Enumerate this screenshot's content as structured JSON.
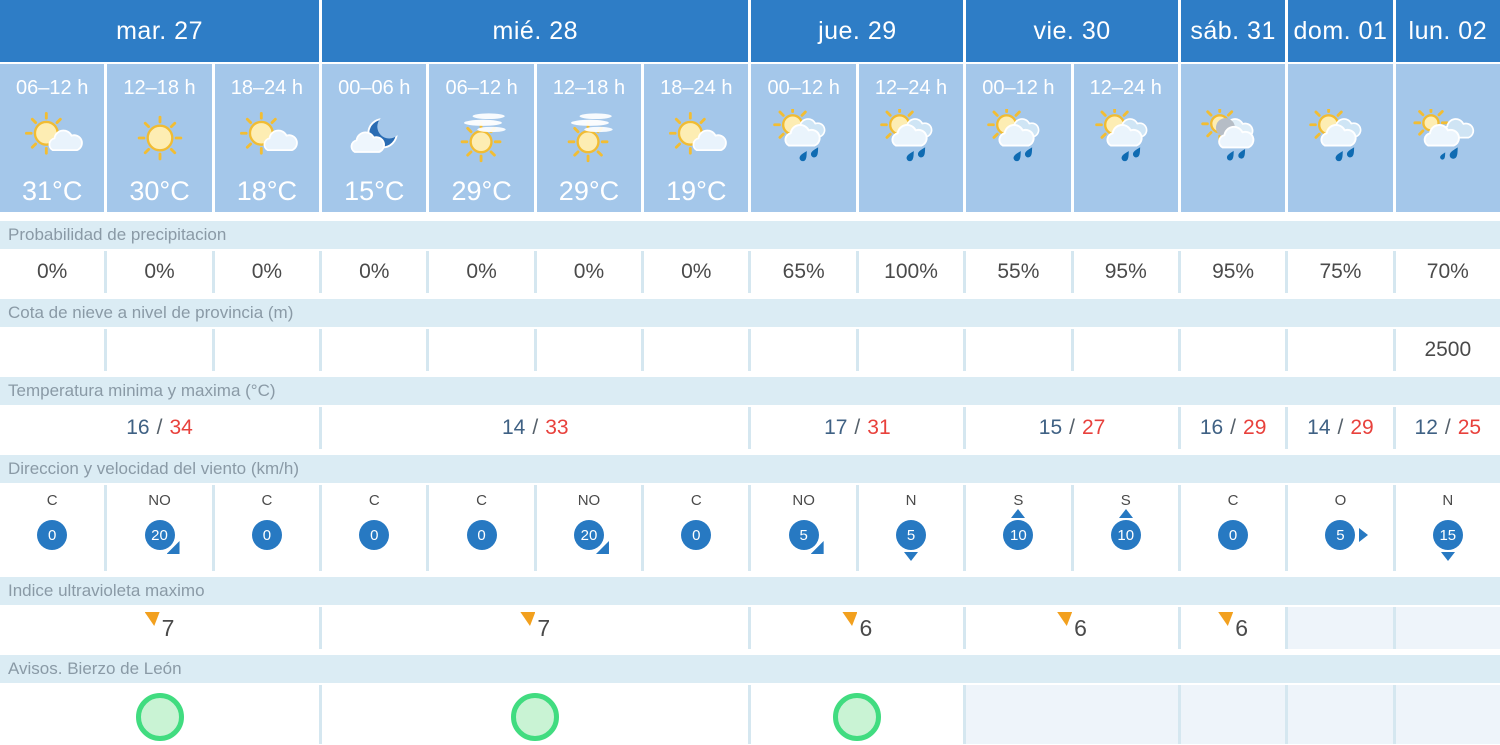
{
  "colors": {
    "day_header_blue": "#2e7dc6",
    "period_cell_blue": "#a4c7ea",
    "label_band_blue": "#dbecf4",
    "label_text_gray": "#8a9aa6",
    "value_text": "#4a4a4a",
    "temp_min_blue": "#3f6184",
    "temp_max_red": "#e8413c",
    "wind_badge_blue": "#2779c2",
    "uv_flag_orange": "#f2a01e",
    "warning_green_border": "#41dc80",
    "warning_green_fill": "#c9f3d4",
    "empty_cell_tint": "#eef4fa"
  },
  "table": {
    "days": [
      {
        "label": "mar. 27",
        "span": 3
      },
      {
        "label": "mié. 28",
        "span": 4
      },
      {
        "label": "jue. 29",
        "span": 2
      },
      {
        "label": "vie. 30",
        "span": 2
      },
      {
        "label": "sáb. 31",
        "span": 1
      },
      {
        "label": "dom. 01",
        "span": 1
      },
      {
        "label": "lun. 02",
        "span": 1
      }
    ],
    "periods": [
      {
        "time": "06–12 h",
        "icon": "sun-cloud",
        "temp": "31°C"
      },
      {
        "time": "12–18 h",
        "icon": "sun",
        "temp": "30°C"
      },
      {
        "time": "18–24 h",
        "icon": "sun-cloud",
        "temp": "18°C"
      },
      {
        "time": "00–06 h",
        "icon": "cloud-moon",
        "temp": "15°C"
      },
      {
        "time": "06–12 h",
        "icon": "sun-cirrus",
        "temp": "29°C"
      },
      {
        "time": "12–18 h",
        "icon": "sun-cirrus",
        "temp": "29°C"
      },
      {
        "time": "18–24 h",
        "icon": "sun-cloud",
        "temp": "19°C"
      },
      {
        "time": "00–12 h",
        "icon": "sun-rain",
        "temp": ""
      },
      {
        "time": "12–24 h",
        "icon": "sun-rain",
        "temp": ""
      },
      {
        "time": "00–12 h",
        "icon": "sun-rain",
        "temp": ""
      },
      {
        "time": "12–24 h",
        "icon": "sun-rain",
        "temp": ""
      },
      {
        "time": "",
        "icon": "sun-rain-gray",
        "temp": ""
      },
      {
        "time": "",
        "icon": "sun-rain",
        "temp": ""
      },
      {
        "time": "",
        "icon": "cloud-rain",
        "temp": ""
      }
    ],
    "rows": {
      "precipitation": {
        "label": "Probabilidad de precipitacion",
        "values": [
          "0%",
          "0%",
          "0%",
          "0%",
          "0%",
          "0%",
          "0%",
          "65%",
          "100%",
          "55%",
          "95%",
          "95%",
          "75%",
          "70%"
        ]
      },
      "snow": {
        "label": "Cota de nieve a nivel de provincia (m)",
        "values": [
          "",
          "",
          "",
          "",
          "",
          "",
          "",
          "",
          "",
          "",
          "",
          "",
          "",
          "2500"
        ]
      },
      "temperature": {
        "label": "Temperatura minima y maxima (°C)",
        "values": [
          {
            "min": "16",
            "max": "34"
          },
          {
            "min": "14",
            "max": "33"
          },
          {
            "min": "17",
            "max": "31"
          },
          {
            "min": "15",
            "max": "27"
          },
          {
            "min": "16",
            "max": "29"
          },
          {
            "min": "14",
            "max": "29"
          },
          {
            "min": "12",
            "max": "25"
          }
        ]
      },
      "wind": {
        "label": "Direccion y velocidad del viento (km/h)",
        "values": [
          {
            "dir": "C",
            "speed": "0",
            "arrow": ""
          },
          {
            "dir": "NO",
            "speed": "20",
            "arrow": "se"
          },
          {
            "dir": "C",
            "speed": "0",
            "arrow": ""
          },
          {
            "dir": "C",
            "speed": "0",
            "arrow": ""
          },
          {
            "dir": "C",
            "speed": "0",
            "arrow": ""
          },
          {
            "dir": "NO",
            "speed": "20",
            "arrow": "se"
          },
          {
            "dir": "C",
            "speed": "0",
            "arrow": ""
          },
          {
            "dir": "NO",
            "speed": "5",
            "arrow": "se"
          },
          {
            "dir": "N",
            "speed": "5",
            "arrow": "down"
          },
          {
            "dir": "S",
            "speed": "10",
            "arrow": "up"
          },
          {
            "dir": "S",
            "speed": "10",
            "arrow": "up"
          },
          {
            "dir": "C",
            "speed": "0",
            "arrow": ""
          },
          {
            "dir": "O",
            "speed": "5",
            "arrow": "right"
          },
          {
            "dir": "N",
            "speed": "15",
            "arrow": "down"
          }
        ]
      },
      "uv": {
        "label": "Indice ultravioleta maximo",
        "values": [
          "7",
          "7",
          "6",
          "6",
          "6",
          "",
          ""
        ]
      },
      "warnings": {
        "label": "Avisos. Bierzo de León",
        "values": [
          "green",
          "green",
          "green",
          "",
          "",
          "",
          ""
        ]
      }
    }
  }
}
